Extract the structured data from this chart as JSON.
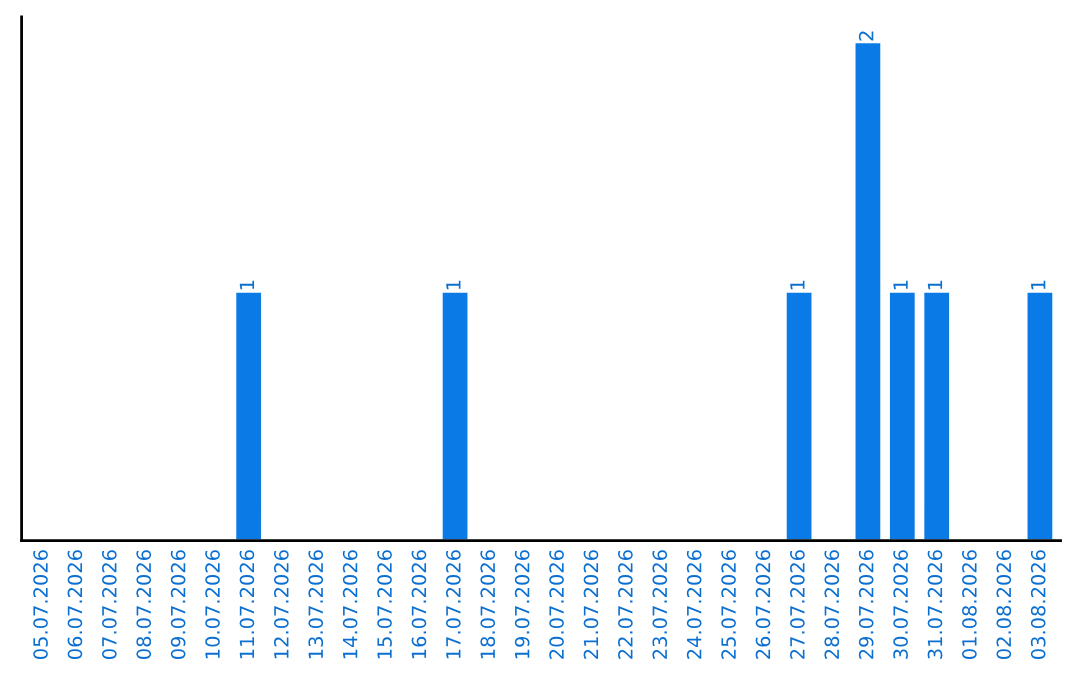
{
  "chart_data": {
    "type": "bar",
    "categories": [
      "05.07.2026",
      "06.07.2026",
      "07.07.2026",
      "08.07.2026",
      "09.07.2026",
      "10.07.2026",
      "11.07.2026",
      "12.07.2026",
      "13.07.2026",
      "14.07.2026",
      "15.07.2026",
      "16.07.2026",
      "17.07.2026",
      "18.07.2026",
      "19.07.2026",
      "20.07.2026",
      "21.07.2026",
      "22.07.2026",
      "23.07.2026",
      "24.07.2026",
      "25.07.2026",
      "26.07.2026",
      "27.07.2026",
      "28.07.2026",
      "29.07.2026",
      "30.07.2026",
      "31.07.2026",
      "01.08.2026",
      "02.08.2026",
      "03.08.2026"
    ],
    "values": [
      null,
      null,
      null,
      null,
      null,
      null,
      1,
      null,
      null,
      null,
      null,
      null,
      1,
      null,
      null,
      null,
      null,
      null,
      null,
      null,
      null,
      null,
      1,
      null,
      2,
      1,
      1,
      null,
      null,
      1
    ],
    "value_labels": [
      null,
      null,
      null,
      null,
      null,
      null,
      "1",
      null,
      null,
      null,
      null,
      null,
      "1",
      null,
      null,
      null,
      null,
      null,
      null,
      null,
      null,
      null,
      "1",
      null,
      "2",
      "1",
      "1",
      null,
      null,
      "1"
    ],
    "color": "#0a7be6",
    "grid": false,
    "legend": false
  }
}
